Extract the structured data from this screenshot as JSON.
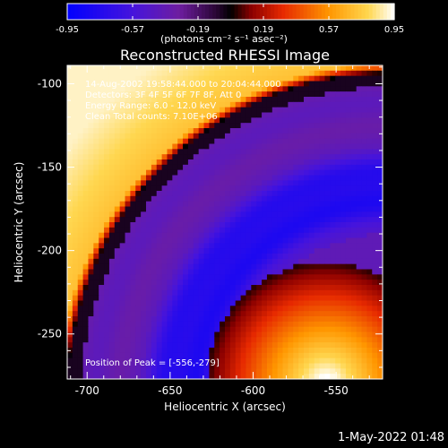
{
  "chart_data": {
    "type": "heatmap",
    "title": "Reconstructed RHESSI Image",
    "xlabel": "Heliocentric X (arcsec)",
    "ylabel": "Heliocentric Y (arcsec)",
    "xlim": [
      -712,
      -522
    ],
    "ylim": [
      -277,
      -89
    ],
    "xticks": [
      -700,
      -650,
      -600,
      -550
    ],
    "yticks": [
      -100,
      -150,
      -200,
      -250
    ],
    "xtick_labels": [
      "-700",
      "-650",
      "-600",
      "-550"
    ],
    "ytick_labels": [
      "-100",
      "-150",
      "-200",
      "-250"
    ],
    "colorbar": {
      "ticks": [
        -0.95,
        -0.57,
        -0.19,
        0.19,
        0.57,
        0.95
      ],
      "tick_labels": [
        "-0.95",
        "-0.57",
        "-0.19",
        "0.19",
        "0.57",
        "0.95"
      ],
      "label": "(photons cm⁻² s⁻¹ asec⁻²)",
      "colors": [
        "#0000ff",
        "#7a1aa8",
        "#000000",
        "#d01000",
        "#ffa000",
        "#ffffff"
      ]
    },
    "annotations": [
      "14-Aug-2002 19:58:44.000 to 20:04:44.000",
      "Detectors: 3F 4F 5F 6F 7F 8F, Att 0",
      "Energy Range: 6.0 - 12.0 keV",
      "Clean     Total counts: 7.10E+06",
      "Position of Peak = [-556,-279]"
    ],
    "peak": {
      "x": -556,
      "y": -279
    }
  },
  "footer": {
    "date": "1-May-2022 01:48"
  },
  "colors": {
    "background": "#000000",
    "text": "#ffffff"
  }
}
